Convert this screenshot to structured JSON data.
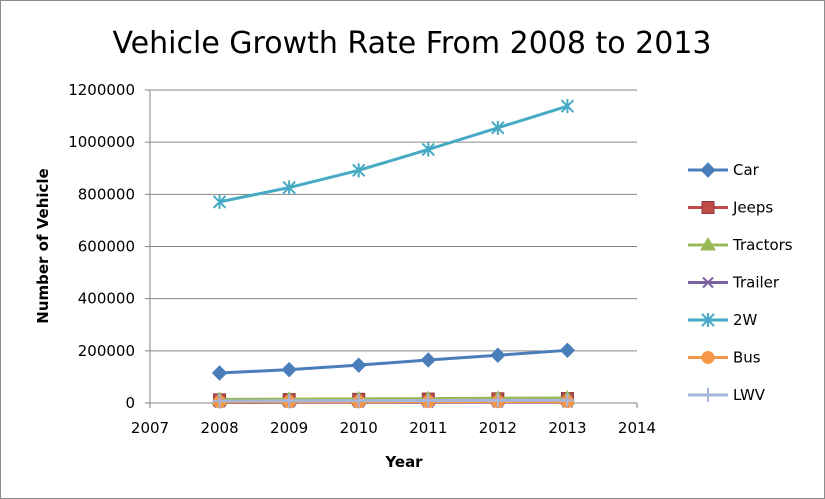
{
  "chart_data": {
    "type": "line",
    "title": "Vehicle Growth Rate From 2008 to 2013",
    "xlabel": "Year",
    "ylabel": "Number  of  Vehicle",
    "x": [
      2008,
      2009,
      2010,
      2011,
      2012,
      2013
    ],
    "xlim": [
      2007,
      2014
    ],
    "ylim": [
      0,
      1200000
    ],
    "xticks": [
      "2007",
      "2008",
      "2009",
      "2010",
      "2011",
      "2012",
      "2013",
      "2014"
    ],
    "yticks": [
      "0",
      "200000",
      "400000",
      "600000",
      "800000",
      "1000000",
      "1200000"
    ],
    "grid": "horizontal",
    "legend": "right",
    "series": [
      {
        "name": "Car",
        "color": "#4a7ebb",
        "marker": "diamond",
        "values": [
          115000,
          128000,
          145000,
          165000,
          183000,
          202000
        ]
      },
      {
        "name": "Jeeps",
        "color": "#be4b48",
        "marker": "square",
        "values": [
          12000,
          13000,
          14000,
          15000,
          16000,
          17000
        ]
      },
      {
        "name": "Tractors",
        "color": "#98b954",
        "marker": "triangle",
        "values": [
          14000,
          15000,
          16000,
          17000,
          18000,
          19000
        ]
      },
      {
        "name": "Trailer",
        "color": "#7d60a0",
        "marker": "x",
        "values": [
          2000,
          2200,
          2400,
          2600,
          2800,
          3000
        ]
      },
      {
        "name": "2W",
        "color": "#46aac5",
        "marker": "star",
        "values": [
          771000,
          826000,
          892000,
          972000,
          1055000,
          1138000
        ]
      },
      {
        "name": "Bus",
        "color": "#f79646",
        "marker": "circle",
        "values": [
          4000,
          4200,
          4400,
          4600,
          4800,
          5000
        ]
      },
      {
        "name": "LWV",
        "color": "#a5b5d9",
        "marker": "plus",
        "values": [
          8000,
          8500,
          9000,
          9500,
          10000,
          10500
        ]
      }
    ]
  }
}
